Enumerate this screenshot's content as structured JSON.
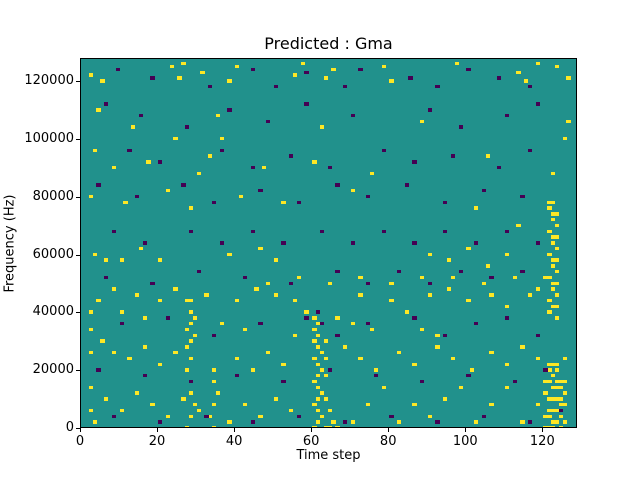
{
  "chart_data": {
    "type": "heatmap",
    "title": "Predicted : Gma",
    "xlabel": "Time step",
    "ylabel": "Frequency (Hz)",
    "xlim": [
      0,
      129
    ],
    "ylim": [
      0,
      128000
    ],
    "x_ticks": [
      0,
      20,
      40,
      60,
      80,
      100,
      120
    ],
    "y_ticks": [
      0,
      20000,
      40000,
      60000,
      80000,
      100000,
      120000
    ],
    "x_bins": 129,
    "y_bins": 128,
    "y_bin_hz": 1000,
    "legend": "none",
    "grid": false,
    "colors": {
      "background": "#21918c",
      "high": "#fde725",
      "low": "#440154"
    },
    "high_cells": [
      [
        2,
        122
      ],
      [
        5,
        120
      ],
      [
        23,
        125
      ],
      [
        25,
        121
      ],
      [
        26,
        126
      ],
      [
        31,
        123
      ],
      [
        38,
        120
      ],
      [
        40,
        125
      ],
      [
        55,
        122
      ],
      [
        57,
        126
      ],
      [
        63,
        121
      ],
      [
        65,
        124
      ],
      [
        78,
        125
      ],
      [
        80,
        120
      ],
      [
        97,
        126
      ],
      [
        113,
        123
      ],
      [
        115,
        120
      ],
      [
        118,
        126
      ],
      [
        123,
        125
      ],
      [
        126,
        121
      ],
      [
        4,
        110
      ],
      [
        13,
        104
      ],
      [
        24,
        100
      ],
      [
        35,
        108
      ],
      [
        36,
        100
      ],
      [
        62,
        104
      ],
      [
        88,
        106
      ],
      [
        125,
        100
      ],
      [
        126,
        106
      ],
      [
        3,
        96
      ],
      [
        8,
        90
      ],
      [
        17,
        92
      ],
      [
        30,
        88
      ],
      [
        33,
        94
      ],
      [
        47,
        90
      ],
      [
        60,
        92
      ],
      [
        75,
        88
      ],
      [
        105,
        94
      ],
      [
        122,
        88
      ],
      [
        2,
        80
      ],
      [
        11,
        78
      ],
      [
        22,
        82
      ],
      [
        28,
        76
      ],
      [
        41,
        80
      ],
      [
        52,
        78
      ],
      [
        70,
        82
      ],
      [
        102,
        76
      ],
      [
        121,
        78
      ],
      [
        122,
        74
      ],
      [
        123,
        70
      ],
      [
        122,
        66
      ],
      [
        123,
        62
      ],
      [
        122,
        58
      ],
      [
        123,
        54
      ],
      [
        122,
        50
      ],
      [
        123,
        46
      ],
      [
        122,
        42
      ],
      [
        123,
        38
      ],
      [
        121,
        76
      ],
      [
        122,
        72
      ],
      [
        121,
        68
      ],
      [
        122,
        64
      ],
      [
        121,
        60
      ],
      [
        122,
        56
      ],
      [
        121,
        52
      ],
      [
        122,
        48
      ],
      [
        121,
        44
      ],
      [
        121,
        40
      ],
      [
        122,
        78
      ],
      [
        123,
        74
      ],
      [
        123,
        66
      ],
      [
        123,
        58
      ],
      [
        123,
        50
      ],
      [
        123,
        42
      ],
      [
        3,
        60
      ],
      [
        10,
        58
      ],
      [
        27,
        44
      ],
      [
        28,
        40
      ],
      [
        28,
        36
      ],
      [
        29,
        32
      ],
      [
        27,
        28
      ],
      [
        28,
        24
      ],
      [
        28,
        30
      ],
      [
        27,
        34
      ],
      [
        28,
        44
      ],
      [
        29,
        38
      ],
      [
        27,
        20
      ],
      [
        28,
        12
      ],
      [
        29,
        8
      ],
      [
        28,
        4
      ],
      [
        27,
        0
      ],
      [
        34,
        20
      ],
      [
        34,
        16
      ],
      [
        35,
        12
      ],
      [
        34,
        8
      ],
      [
        33,
        4
      ],
      [
        34,
        0
      ],
      [
        60,
        34
      ],
      [
        61,
        32
      ],
      [
        60,
        30
      ],
      [
        61,
        28
      ],
      [
        62,
        26
      ],
      [
        60,
        24
      ],
      [
        61,
        22
      ],
      [
        62,
        20
      ],
      [
        61,
        18
      ],
      [
        60,
        16
      ],
      [
        61,
        14
      ],
      [
        62,
        12
      ],
      [
        61,
        10
      ],
      [
        60,
        8
      ],
      [
        61,
        6
      ],
      [
        62,
        4
      ],
      [
        61,
        2
      ],
      [
        60,
        0
      ],
      [
        63,
        30
      ],
      [
        63,
        24
      ],
      [
        63,
        18
      ],
      [
        63,
        10
      ],
      [
        64,
        6
      ],
      [
        60,
        38
      ],
      [
        61,
        36
      ],
      [
        63,
        0
      ],
      [
        64,
        0
      ],
      [
        65,
        2
      ],
      [
        66,
        0
      ],
      [
        45,
        48
      ],
      [
        50,
        46
      ],
      [
        55,
        44
      ],
      [
        58,
        40
      ],
      [
        66,
        38
      ],
      [
        72,
        46
      ],
      [
        80,
        44
      ],
      [
        84,
        40
      ],
      [
        90,
        46
      ],
      [
        95,
        48
      ],
      [
        100,
        44
      ],
      [
        106,
        46
      ],
      [
        110,
        42
      ],
      [
        116,
        46
      ],
      [
        118,
        48
      ],
      [
        5,
        30
      ],
      [
        8,
        26
      ],
      [
        12,
        24
      ],
      [
        16,
        28
      ],
      [
        20,
        22
      ],
      [
        24,
        26
      ],
      [
        40,
        24
      ],
      [
        44,
        20
      ],
      [
        48,
        26
      ],
      [
        52,
        22
      ],
      [
        68,
        28
      ],
      [
        72,
        24
      ],
      [
        76,
        20
      ],
      [
        82,
        26
      ],
      [
        86,
        22
      ],
      [
        92,
        28
      ],
      [
        96,
        24
      ],
      [
        101,
        20
      ],
      [
        106,
        26
      ],
      [
        110,
        22
      ],
      [
        114,
        28
      ],
      [
        118,
        24
      ],
      [
        2,
        14
      ],
      [
        6,
        10
      ],
      [
        10,
        6
      ],
      [
        14,
        12
      ],
      [
        18,
        8
      ],
      [
        22,
        4
      ],
      [
        26,
        10
      ],
      [
        30,
        6
      ],
      [
        38,
        2
      ],
      [
        42,
        8
      ],
      [
        46,
        4
      ],
      [
        50,
        10
      ],
      [
        54,
        6
      ],
      [
        70,
        2
      ],
      [
        74,
        8
      ],
      [
        78,
        14
      ],
      [
        82,
        2
      ],
      [
        86,
        8
      ],
      [
        90,
        4
      ],
      [
        94,
        10
      ],
      [
        98,
        14
      ],
      [
        102,
        2
      ],
      [
        106,
        8
      ],
      [
        110,
        14
      ],
      [
        114,
        2
      ],
      [
        118,
        8
      ],
      [
        121,
        22
      ],
      [
        122,
        18
      ],
      [
        123,
        14
      ],
      [
        124,
        10
      ],
      [
        121,
        6
      ],
      [
        122,
        2
      ],
      [
        123,
        20
      ],
      [
        124,
        16
      ],
      [
        125,
        12
      ],
      [
        124,
        4
      ],
      [
        125,
        24
      ],
      [
        120,
        12
      ],
      [
        120,
        0
      ],
      [
        121,
        0
      ],
      [
        122,
        0
      ],
      [
        123,
        2
      ],
      [
        124,
        0
      ],
      [
        125,
        2
      ],
      [
        120,
        4
      ],
      [
        121,
        4
      ],
      [
        122,
        6
      ],
      [
        123,
        6
      ],
      [
        124,
        8
      ],
      [
        125,
        8
      ],
      [
        121,
        10
      ],
      [
        122,
        10
      ],
      [
        123,
        10
      ],
      [
        120,
        16
      ],
      [
        121,
        16
      ],
      [
        122,
        14
      ],
      [
        123,
        16
      ],
      [
        124,
        14
      ],
      [
        125,
        16
      ],
      [
        121,
        20
      ],
      [
        122,
        22
      ],
      [
        123,
        22
      ],
      [
        90,
        60
      ],
      [
        95,
        58
      ],
      [
        100,
        62
      ],
      [
        105,
        56
      ],
      [
        110,
        60
      ],
      [
        113,
        70
      ],
      [
        46,
        62
      ],
      [
        50,
        58
      ],
      [
        38,
        60
      ],
      [
        20,
        58
      ],
      [
        15,
        62
      ],
      [
        6,
        58
      ],
      [
        88,
        34
      ],
      [
        92,
        32
      ],
      [
        75,
        34
      ],
      [
        70,
        36
      ],
      [
        55,
        32
      ],
      [
        42,
        34
      ],
      [
        36,
        36
      ],
      [
        16,
        38
      ],
      [
        10,
        40
      ],
      [
        4,
        44
      ],
      [
        8,
        48
      ],
      [
        14,
        46
      ],
      [
        20,
        44
      ],
      [
        24,
        48
      ],
      [
        32,
        46
      ],
      [
        40,
        44
      ],
      [
        48,
        50
      ],
      [
        56,
        52
      ],
      [
        64,
        50
      ],
      [
        72,
        52
      ],
      [
        80,
        50
      ],
      [
        88,
        52
      ],
      [
        96,
        52
      ],
      [
        104,
        50
      ],
      [
        112,
        52
      ],
      [
        120,
        52
      ],
      [
        2,
        40
      ],
      [
        2,
        34
      ],
      [
        2,
        26
      ],
      [
        2,
        6
      ],
      [
        3,
        2
      ]
    ],
    "low_cells": [
      [
        9,
        124
      ],
      [
        18,
        121
      ],
      [
        33,
        118
      ],
      [
        44,
        124
      ],
      [
        50,
        118
      ],
      [
        58,
        123
      ],
      [
        68,
        118
      ],
      [
        72,
        124
      ],
      [
        85,
        121
      ],
      [
        92,
        118
      ],
      [
        100,
        124
      ],
      [
        108,
        121
      ],
      [
        116,
        118
      ],
      [
        6,
        112
      ],
      [
        15,
        108
      ],
      [
        27,
        104
      ],
      [
        38,
        110
      ],
      [
        48,
        106
      ],
      [
        58,
        112
      ],
      [
        70,
        108
      ],
      [
        90,
        110
      ],
      [
        98,
        104
      ],
      [
        110,
        108
      ],
      [
        118,
        112
      ],
      [
        12,
        96
      ],
      [
        20,
        92
      ],
      [
        36,
        96
      ],
      [
        44,
        90
      ],
      [
        54,
        94
      ],
      [
        64,
        90
      ],
      [
        78,
        96
      ],
      [
        86,
        92
      ],
      [
        96,
        94
      ],
      [
        108,
        90
      ],
      [
        116,
        96
      ],
      [
        4,
        84
      ],
      [
        14,
        80
      ],
      [
        26,
        84
      ],
      [
        34,
        78
      ],
      [
        46,
        82
      ],
      [
        56,
        78
      ],
      [
        66,
        84
      ],
      [
        74,
        80
      ],
      [
        84,
        84
      ],
      [
        94,
        78
      ],
      [
        104,
        82
      ],
      [
        114,
        80
      ],
      [
        8,
        68
      ],
      [
        16,
        64
      ],
      [
        28,
        68
      ],
      [
        36,
        64
      ],
      [
        44,
        68
      ],
      [
        52,
        64
      ],
      [
        62,
        68
      ],
      [
        70,
        64
      ],
      [
        78,
        68
      ],
      [
        86,
        64
      ],
      [
        94,
        68
      ],
      [
        102,
        64
      ],
      [
        110,
        68
      ],
      [
        118,
        64
      ],
      [
        6,
        52
      ],
      [
        18,
        50
      ],
      [
        30,
        54
      ],
      [
        42,
        52
      ],
      [
        54,
        50
      ],
      [
        66,
        54
      ],
      [
        74,
        50
      ],
      [
        82,
        54
      ],
      [
        90,
        50
      ],
      [
        98,
        54
      ],
      [
        106,
        52
      ],
      [
        114,
        54
      ],
      [
        10,
        36
      ],
      [
        22,
        38
      ],
      [
        34,
        32
      ],
      [
        46,
        36
      ],
      [
        58,
        38
      ],
      [
        66,
        32
      ],
      [
        74,
        36
      ],
      [
        86,
        38
      ],
      [
        94,
        32
      ],
      [
        102,
        36
      ],
      [
        110,
        38
      ],
      [
        118,
        32
      ],
      [
        4,
        20
      ],
      [
        16,
        18
      ],
      [
        28,
        16
      ],
      [
        40,
        18
      ],
      [
        52,
        16
      ],
      [
        64,
        20
      ],
      [
        76,
        18
      ],
      [
        88,
        16
      ],
      [
        100,
        18
      ],
      [
        112,
        16
      ],
      [
        120,
        20
      ],
      [
        8,
        4
      ],
      [
        20,
        2
      ],
      [
        32,
        4
      ],
      [
        44,
        2
      ],
      [
        56,
        4
      ],
      [
        68,
        2
      ],
      [
        80,
        4
      ],
      [
        92,
        2
      ],
      [
        104,
        4
      ],
      [
        116,
        2
      ],
      [
        124,
        6
      ],
      [
        62,
        36
      ],
      [
        61,
        40
      ]
    ]
  }
}
